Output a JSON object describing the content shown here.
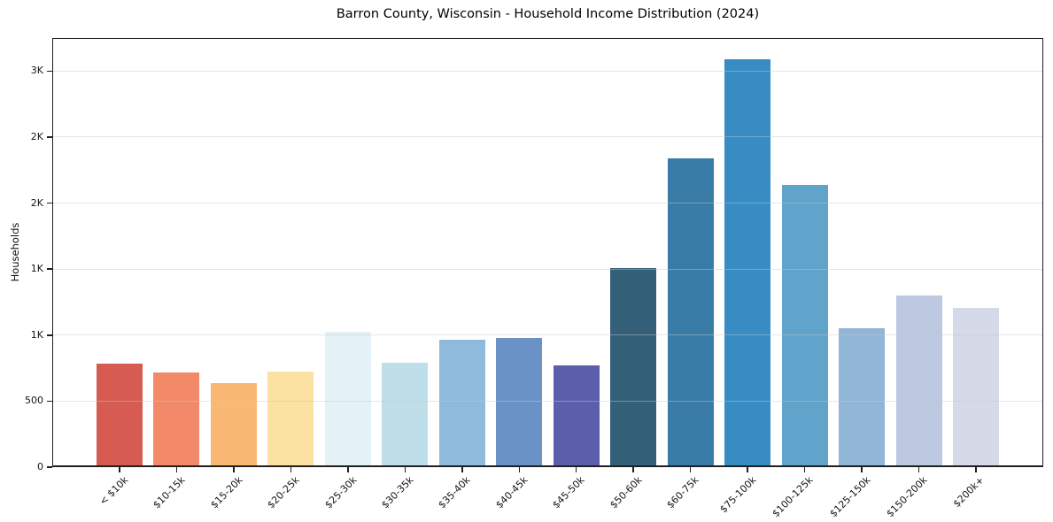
{
  "chart_data": {
    "type": "bar",
    "title": "Barron County, Wisconsin - Household Income Distribution (2024)",
    "xlabel": "",
    "ylabel": "Households",
    "categories": [
      "< $10k",
      "$10-15k",
      "$15-20k",
      "$20-25k",
      "$25-30k",
      "$30-35k",
      "$35-40k",
      "$40-45k",
      "$45-50k",
      "$50-60k",
      "$60-75k",
      "$75-100k",
      "$100-125k",
      "$125-150k",
      "$150-200k",
      "$200k+"
    ],
    "values": [
      785,
      715,
      640,
      725,
      1025,
      790,
      965,
      980,
      770,
      1510,
      2340,
      3090,
      2140,
      1055,
      1300,
      1205
    ],
    "bar_colors": [
      "#d65c51",
      "#f28a6a",
      "#f9b873",
      "#fce2a2",
      "#e4f1f6",
      "#bedfe9",
      "#8fbadb",
      "#6b92c6",
      "#5b5fab",
      "#34607a",
      "#3a7ca8",
      "#368cc3",
      "#60a3cb",
      "#91b6d7",
      "#bcc9e0",
      "#d6d9e7"
    ],
    "ylim": [
      0,
      3250
    ],
    "yticks": [
      {
        "value": 0,
        "label": "0"
      },
      {
        "value": 500,
        "label": "500"
      },
      {
        "value": 1000,
        "label": "1K"
      },
      {
        "value": 1500,
        "label": "1K"
      },
      {
        "value": 2000,
        "label": "2K"
      },
      {
        "value": 2500,
        "label": "2K"
      },
      {
        "value": 3000,
        "label": "3K"
      }
    ],
    "grid": "horizontal",
    "legend": "none",
    "axis_color": "#1f1f1f",
    "grid_color": "#e7e7e7"
  }
}
